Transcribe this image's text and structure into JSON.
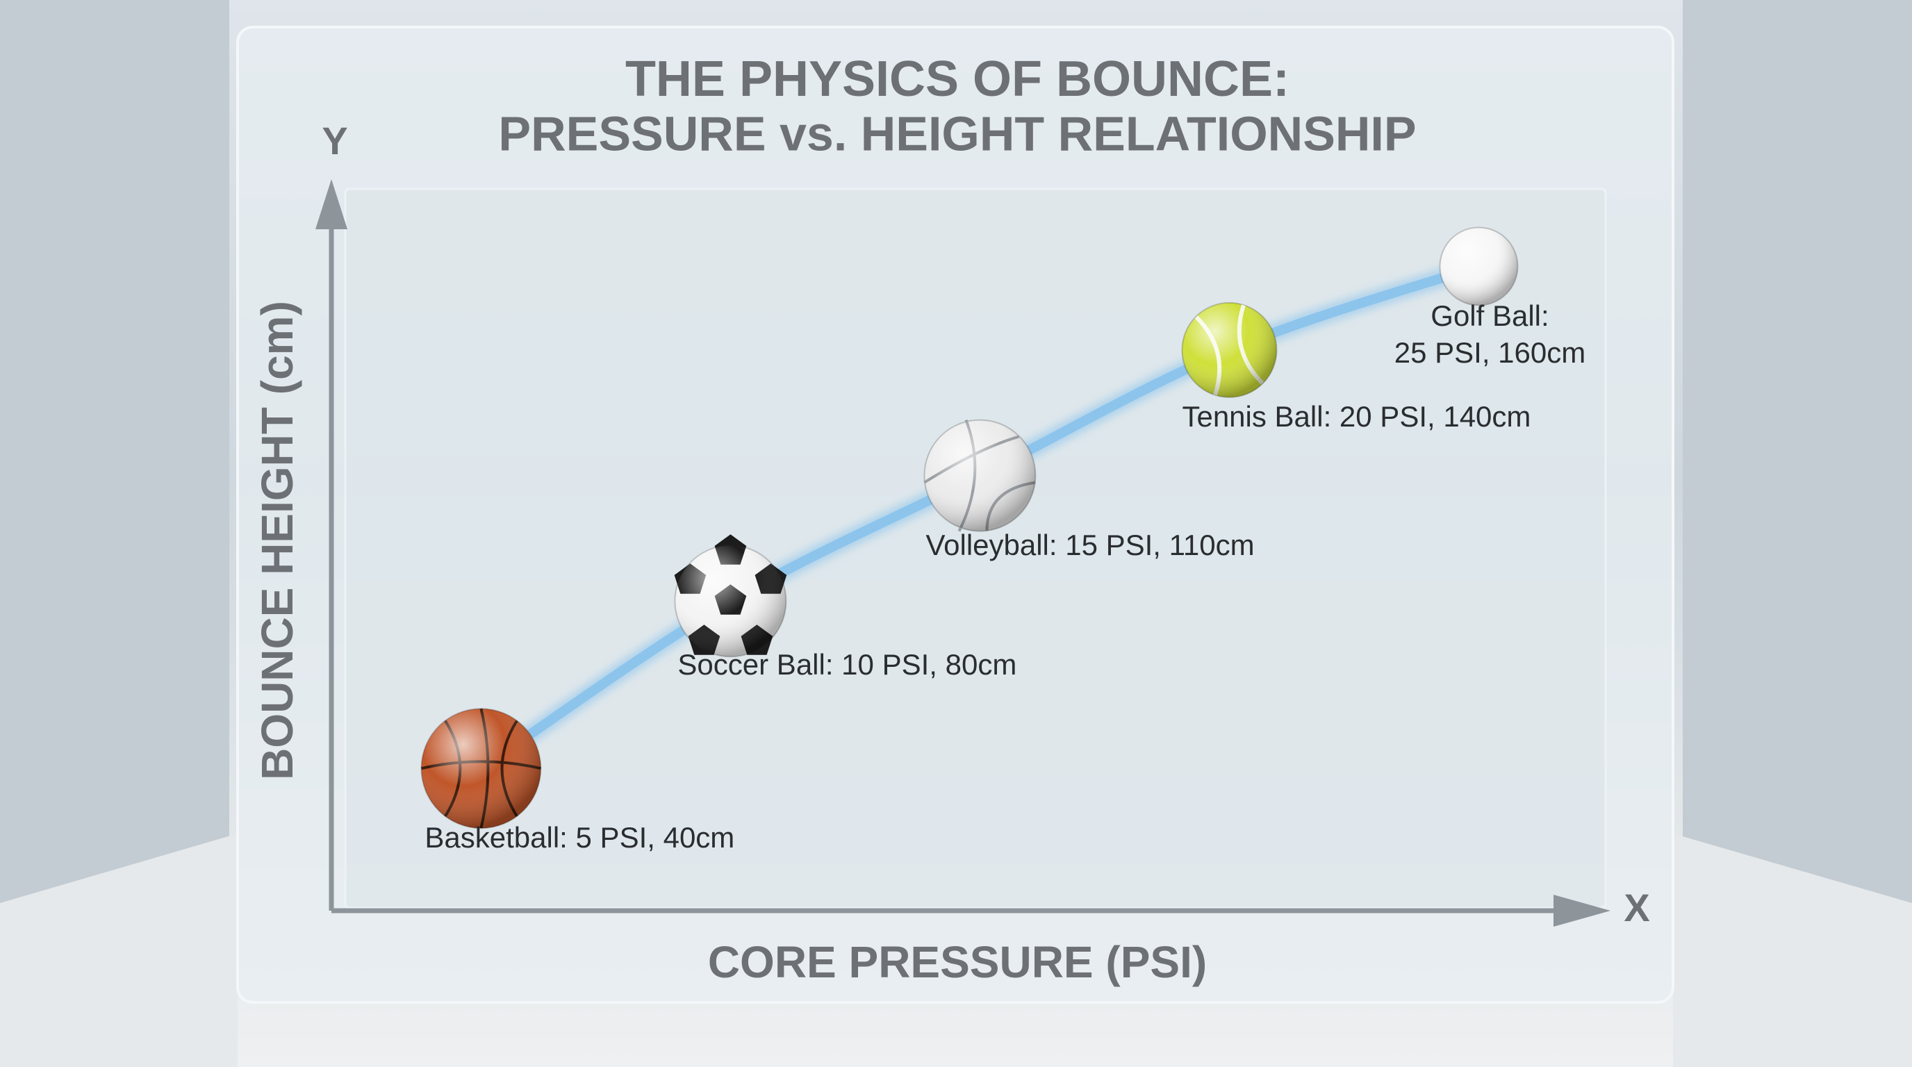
{
  "chart_data": {
    "type": "line",
    "title": "THE PHYSICS OF BOUNCE:",
    "subtitle": "PRESSURE vs. HEIGHT RELATIONSHIP",
    "x_axis_symbol": "X",
    "y_axis_symbol": "Y",
    "x_label": "CORE PRESSURE (PSI)",
    "y_label": "BOUNCE HEIGHT (cm)",
    "x": [
      5,
      10,
      15,
      20,
      25
    ],
    "values": [
      40,
      80,
      110,
      140,
      160
    ],
    "value_labels": [
      "Basketball: 5 PSI, 40cm",
      "Soccer Ball: 10 PSI, 80cm",
      "Volleyball: 15 PSI, 110cm",
      "Tennis Ball: 20 PSI, 140cm",
      "Golf Ball:\n25 PSI, 160cm"
    ],
    "color": "#8cc4ec",
    "marker_colors": [
      "#c0562a",
      "#f4f4f4",
      "#ececec",
      "#cfe03a",
      "#f7f7f7"
    ],
    "xlim": [
      2,
      27.5
    ],
    "ylim": [
      6,
      180
    ]
  }
}
